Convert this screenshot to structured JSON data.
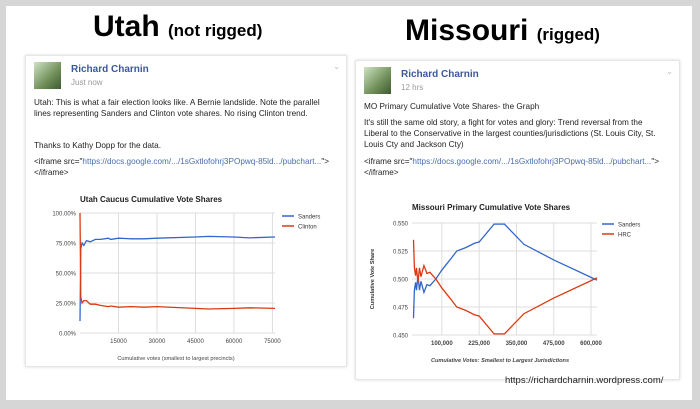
{
  "left": {
    "heading": "Utah",
    "heading_note": "(not rigged)",
    "post": {
      "author": "Richard Charnin",
      "time": "Just now",
      "text": "Utah: This is what a fair election looks like. A Bernie landslide. Note the parallel lines representing Sanders and Clinton vote shares. No rising Clinton trend.",
      "thanks": "Thanks to Kathy Dopp for the data.",
      "embed_pre": "<iframe src=\"",
      "embed_link": "https://docs.google.com/.../1sGxtlofohrj3POpwq-85ld.../pubchart...",
      "embed_post": "\"></iframe>"
    }
  },
  "right": {
    "heading": "Missouri",
    "heading_note": "(rigged)",
    "post": {
      "author": "Richard Charnin",
      "time": "12 hrs",
      "title": "MO Primary Cumulative Vote Shares- the Graph",
      "text": "It's still the same old story, a fight for votes and glory: Trend reversal from the Liberal to the Conservative in the largest counties/jurisdictions (St. Louis City, St. Louis Cty and Jackson Cty)",
      "embed_pre": "<iframe src=\"",
      "embed_link": "https://docs.google.com/.../1sGxtlofohrj3POpwq-85ld.../pubchart...",
      "embed_post": "\"></iframe>"
    }
  },
  "footer_url": "https://richardcharnin.wordpress.com/",
  "chart_data": [
    {
      "type": "line",
      "title": "Utah Caucus Cumulative Vote Shares",
      "xlabel": "Cumulative votes (smallest to largest precincts)",
      "ylabel": "",
      "xlim": [
        0,
        76000
      ],
      "ylim": [
        0,
        100
      ],
      "grid": true,
      "legend": "right",
      "xticks": [
        "15000",
        "30000",
        "45000",
        "60000",
        "75000"
      ],
      "xtick_values": [
        15000,
        30000,
        45000,
        60000,
        75000
      ],
      "yticks": [
        "0.00%",
        "25.00%",
        "50.00%",
        "75.00%",
        "100.00%"
      ],
      "ytick_values": [
        0,
        25,
        50,
        75,
        100
      ],
      "series": [
        {
          "name": "Sanders",
          "color": "#3366cc",
          "x": [
            0,
            300,
            800,
            1500,
            2500,
            4000,
            6000,
            8000,
            11000,
            12000,
            15000,
            20000,
            25000,
            30000,
            45000,
            50000,
            60000,
            66000,
            76000
          ],
          "y": [
            10,
            70,
            75,
            73,
            77,
            76,
            78,
            78,
            79,
            78,
            79,
            78.5,
            78.5,
            79,
            80,
            80.5,
            80,
            79.3,
            80
          ]
        },
        {
          "name": "Clinton",
          "color": "#dc3912",
          "x": [
            0,
            300,
            800,
            1500,
            2500,
            4000,
            6000,
            8000,
            11000,
            12000,
            15000,
            20000,
            25000,
            30000,
            45000,
            50000,
            60000,
            66000,
            76000
          ],
          "y": [
            100,
            30,
            25,
            27,
            27,
            24,
            24,
            23,
            22,
            22.5,
            21.5,
            22,
            21.5,
            22,
            20.5,
            20,
            20.5,
            21,
            20.5
          ]
        }
      ]
    },
    {
      "type": "line",
      "title": "Missouri Primary Cumulative Vote Shares",
      "xlabel": "Cumulative Votes: Smallest to Largest Jurisdictions",
      "ylabel": "Cumulative Vote Share",
      "xlim": [
        0,
        620000
      ],
      "ylim": [
        0.45,
        0.55
      ],
      "grid": true,
      "legend": "right",
      "xticks": [
        "100,000",
        "225,000",
        "350,000",
        "475,000",
        "600,000"
      ],
      "xtick_values": [
        100000,
        225000,
        350000,
        475000,
        600000
      ],
      "yticks": [
        "0.450",
        "0.475",
        "0.500",
        "0.525",
        "0.550"
      ],
      "ytick_values": [
        0.45,
        0.475,
        0.5,
        0.525,
        0.55
      ],
      "series": [
        {
          "name": "Sanders",
          "color": "#3366cc",
          "x": [
            5000,
            8000,
            12000,
            15000,
            20000,
            25000,
            30000,
            40000,
            50000,
            60000,
            70000,
            80000,
            100000,
            130000,
            150000,
            180000,
            210000,
            225000,
            275000,
            310000,
            375000,
            475000,
            620000
          ],
          "y": [
            0.465,
            0.49,
            0.497,
            0.49,
            0.503,
            0.49,
            0.498,
            0.488,
            0.495,
            0.494,
            0.497,
            0.5,
            0.508,
            0.518,
            0.525,
            0.528,
            0.532,
            0.533,
            0.549,
            0.549,
            0.531,
            0.517,
            0.499
          ]
        },
        {
          "name": "HRC",
          "color": "#dc3912",
          "x": [
            5000,
            8000,
            12000,
            15000,
            20000,
            25000,
            30000,
            40000,
            50000,
            60000,
            70000,
            80000,
            100000,
            130000,
            150000,
            180000,
            210000,
            225000,
            275000,
            310000,
            375000,
            475000,
            620000
          ],
          "y": [
            0.535,
            0.51,
            0.503,
            0.51,
            0.497,
            0.51,
            0.502,
            0.512,
            0.505,
            0.506,
            0.503,
            0.5,
            0.492,
            0.482,
            0.475,
            0.472,
            0.468,
            0.467,
            0.451,
            0.451,
            0.469,
            0.483,
            0.501
          ]
        }
      ]
    }
  ]
}
